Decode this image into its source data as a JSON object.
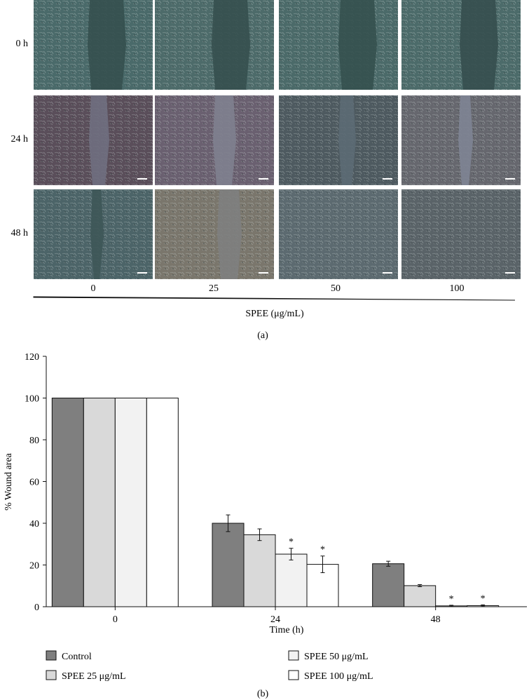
{
  "panel_a": {
    "row_labels": [
      "0 h",
      "24 h",
      "48 h"
    ],
    "column_labels": [
      "0",
      "25",
      "50",
      "100"
    ],
    "axis_label": "SPEE (μg/mL)",
    "panel_label": "(a)",
    "tile_tones": [
      [
        "#4a6a6a",
        "#4d6b6a",
        "#4b6a69",
        "#4c6b6a"
      ],
      [
        "#5a4e5a",
        "#6a6070",
        "#4e5a60",
        "#66676e"
      ],
      [
        "#4c6468",
        "#7a766c",
        "#5c6a70",
        "#5a6368"
      ]
    ],
    "gap_tones": [
      [
        "#35504f",
        "#36504f",
        "#35514f",
        "#364f4f"
      ],
      [
        "#6f6f80",
        "#80818f",
        "#5c6a74",
        "#7e8494"
      ],
      [
        "#3e5658",
        "#7e7f80",
        "",
        ""
      ]
    ]
  },
  "panel_b_label": "(b)",
  "chart_data": {
    "type": "bar",
    "categories": [
      "0",
      "24",
      "48"
    ],
    "xlabel": "Time (h)",
    "ylabel": "% Wound area",
    "ylim": [
      0,
      120
    ],
    "yticks": [
      "0",
      "20",
      "40",
      "60",
      "80",
      "100",
      "120"
    ],
    "grid": false,
    "legend_position": "bottom",
    "series": [
      {
        "name": "Control",
        "color": "#7f7f7f",
        "values": [
          100,
          40,
          20.6
        ],
        "errors": [
          0,
          4,
          1.2
        ],
        "sig": [
          false,
          false,
          false
        ]
      },
      {
        "name": "SPEE 25 μg/mL",
        "color": "#d9d9d9",
        "values": [
          100,
          34.5,
          10.1
        ],
        "errors": [
          0,
          2.8,
          0.5
        ],
        "sig": [
          false,
          false,
          false
        ]
      },
      {
        "name": "SPEE 50 μg/mL",
        "color": "#f2f2f2",
        "values": [
          100,
          25.2,
          0.4
        ],
        "errors": [
          0,
          2.8,
          0.3
        ],
        "sig": [
          false,
          true,
          true
        ]
      },
      {
        "name": "SPEE 100 μg/mL",
        "color": "#ffffff",
        "values": [
          100,
          20.3,
          0.5
        ],
        "errors": [
          0,
          4,
          0.4
        ],
        "sig": [
          false,
          true,
          true
        ]
      }
    ],
    "significance_marker": "*"
  }
}
